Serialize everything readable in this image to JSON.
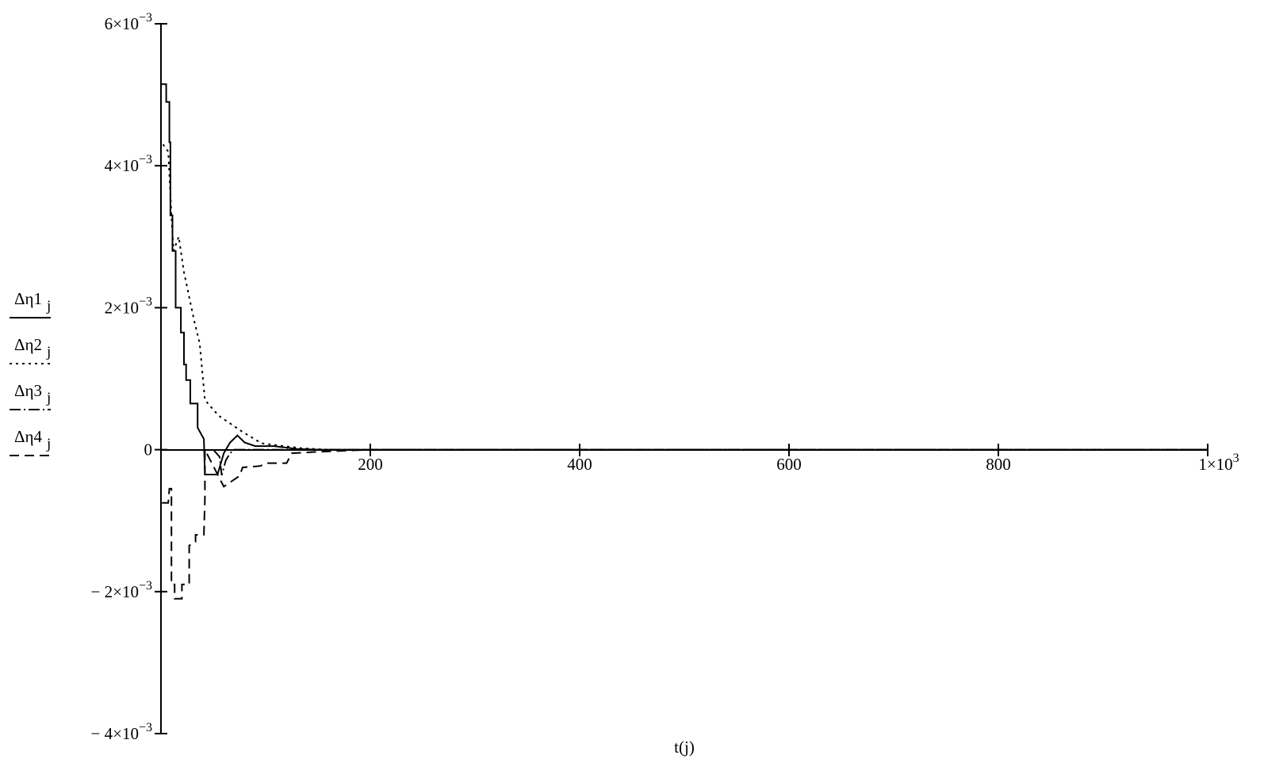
{
  "chart_data": {
    "type": "line",
    "title": "",
    "xlabel": "t(j)",
    "ylabel": "",
    "xlim": [
      0,
      1000
    ],
    "ylim": [
      -0.004,
      0.006
    ],
    "grid": false,
    "legend_placement": "left",
    "x_ticks": [
      {
        "value": 200,
        "base": "200",
        "exp": ""
      },
      {
        "value": 400,
        "base": "400",
        "exp": ""
      },
      {
        "value": 600,
        "base": "600",
        "exp": ""
      },
      {
        "value": 800,
        "base": "800",
        "exp": ""
      },
      {
        "value": 1000,
        "base": "1×10",
        "exp": "3"
      }
    ],
    "y_ticks": [
      {
        "value": 0.006,
        "base": "6×10",
        "exp": "−3"
      },
      {
        "value": 0.004,
        "base": "4×10",
        "exp": "−3"
      },
      {
        "value": 0.002,
        "base": "2×10",
        "exp": "−3"
      },
      {
        "value": 0,
        "base": "0",
        "exp": ""
      },
      {
        "value": -0.002,
        "base": "− 2×10",
        "exp": "−3"
      },
      {
        "value": -0.004,
        "base": "− 4×10",
        "exp": "−3"
      }
    ],
    "series": [
      {
        "name": "Δη1",
        "subscript": "j",
        "style": "solid",
        "points": [
          [
            0,
            0.00515
          ],
          [
            5,
            0.00515
          ],
          [
            5,
            0.0049
          ],
          [
            8,
            0.0049
          ],
          [
            8,
            0.00433
          ],
          [
            9,
            0.00433
          ],
          [
            9,
            0.0033
          ],
          [
            11,
            0.0033
          ],
          [
            11,
            0.0028
          ],
          [
            14,
            0.0028
          ],
          [
            14,
            0.002
          ],
          [
            19,
            0.002
          ],
          [
            19,
            0.00165
          ],
          [
            22,
            0.00165
          ],
          [
            22,
            0.0012
          ],
          [
            24,
            0.0012
          ],
          [
            24,
            0.00098
          ],
          [
            28,
            0.00098
          ],
          [
            28,
            0.00065
          ],
          [
            35,
            0.00065
          ],
          [
            35,
            0.00031
          ],
          [
            41,
            0.00015
          ],
          [
            42,
            -0.00035
          ],
          [
            54,
            -0.00035
          ],
          [
            60,
            -5e-05
          ],
          [
            66,
            0.0001
          ],
          [
            73,
            0.0002
          ],
          [
            80,
            0.0001
          ],
          [
            90,
            5e-05
          ],
          [
            108,
            5e-05
          ],
          [
            130,
            1e-05
          ],
          [
            150,
            0
          ],
          [
            1000,
            0
          ]
        ]
      },
      {
        "name": "Δη2",
        "subscript": "j",
        "style": "dotted",
        "points": [
          [
            2,
            0.0043
          ],
          [
            7,
            0.0042
          ],
          [
            10,
            0.0033
          ],
          [
            12,
            0.0028
          ],
          [
            17,
            0.003
          ],
          [
            22,
            0.0025
          ],
          [
            32,
            0.0018
          ],
          [
            37,
            0.0015
          ],
          [
            42,
            0.0007
          ],
          [
            55,
            0.00048
          ],
          [
            77,
            0.00026
          ],
          [
            96,
            9e-05
          ],
          [
            134,
            2e-05
          ],
          [
            160,
            0
          ],
          [
            1000,
            0
          ]
        ]
      },
      {
        "name": "Δη3",
        "subscript": "j",
        "style": "dash-dot",
        "points": [
          [
            50,
            0
          ],
          [
            56,
            -0.0001
          ],
          [
            58,
            -0.00036
          ],
          [
            62,
            -0.00015
          ],
          [
            66,
            -5e-05
          ],
          [
            70,
            0
          ],
          [
            1000,
            0
          ]
        ]
      },
      {
        "name": "Δη4",
        "subscript": "j",
        "style": "dashed",
        "points": [
          [
            1,
            -0.00075
          ],
          [
            7,
            -0.00075
          ],
          [
            8,
            -0.00055
          ],
          [
            10,
            -0.00055
          ],
          [
            10,
            -0.0019
          ],
          [
            13,
            -0.0019
          ],
          [
            13,
            -0.0021
          ],
          [
            20,
            -0.0021
          ],
          [
            20,
            -0.0019
          ],
          [
            27,
            -0.0019
          ],
          [
            27,
            -0.00135
          ],
          [
            33,
            -0.0013
          ],
          [
            33,
            -0.0012
          ],
          [
            41,
            -0.0012
          ],
          [
            42,
            -0.0007
          ],
          [
            42,
            0
          ],
          [
            60,
            -0.00052
          ],
          [
            75,
            -0.00037
          ],
          [
            78,
            -0.00025
          ],
          [
            95,
            -0.00023
          ],
          [
            100,
            -0.00019
          ],
          [
            120,
            -0.00019
          ],
          [
            125,
            -5e-05
          ],
          [
            150,
            -3e-05
          ],
          [
            200,
            0
          ],
          [
            1000,
            0
          ]
        ]
      }
    ]
  }
}
